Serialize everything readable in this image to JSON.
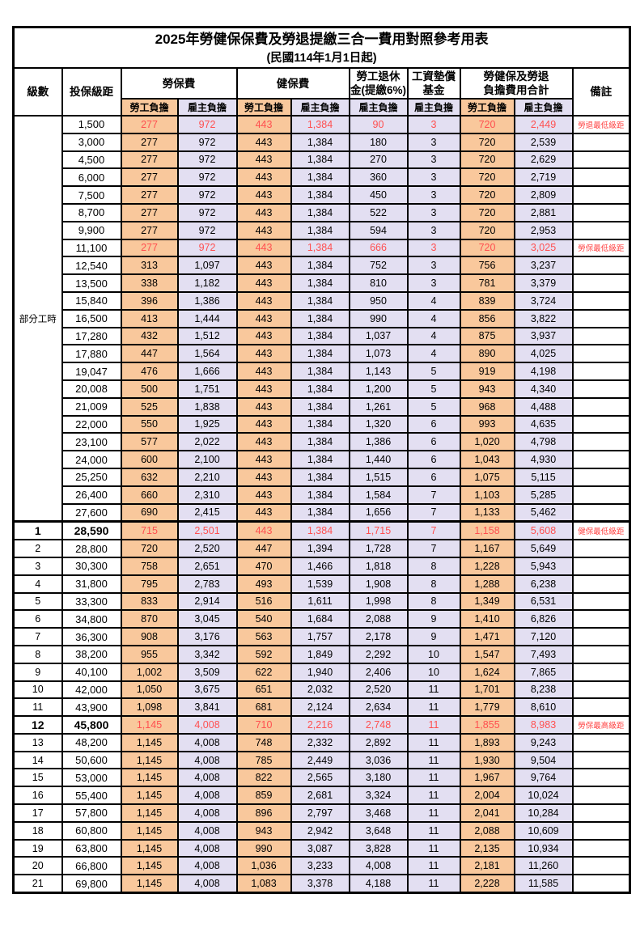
{
  "title": "2025年勞健保保費及勞退提繳三合一費用對照參考用表",
  "subtitle": "(民國114年1月1日起)",
  "columns": {
    "level": "級數",
    "bracket": "投保級距",
    "labor_insurance": "勞保費",
    "health_insurance": "健保費",
    "labor_pension": "勞工退休\n金(提繳6%)",
    "wage_arrears_fund": "工資墊償\n基金",
    "total": "勞健保及勞退\n負擔費用合計",
    "remark": "備註",
    "employee_share": "勞工負擔",
    "employer_share": "雇主負擔"
  },
  "part_time_label": "部分工時",
  "colors": {
    "employee_bg": "#F9C89C",
    "employer_bg": "#E3DFF2",
    "highlight_text": "#FF5050",
    "remark_text": "#FF4040",
    "border": "#000000"
  },
  "rows": [
    {
      "level": "",
      "bracket": "1,500",
      "values": [
        "277",
        "972",
        "443",
        "1,384",
        "90",
        "3",
        "720",
        "2,449"
      ],
      "remark": "勞退最低級距",
      "highlight": true,
      "bold": false
    },
    {
      "level": "",
      "bracket": "3,000",
      "values": [
        "277",
        "972",
        "443",
        "1,384",
        "180",
        "3",
        "720",
        "2,539"
      ],
      "remark": "",
      "highlight": false,
      "bold": false
    },
    {
      "level": "",
      "bracket": "4,500",
      "values": [
        "277",
        "972",
        "443",
        "1,384",
        "270",
        "3",
        "720",
        "2,629"
      ],
      "remark": "",
      "highlight": false,
      "bold": false
    },
    {
      "level": "",
      "bracket": "6,000",
      "values": [
        "277",
        "972",
        "443",
        "1,384",
        "360",
        "3",
        "720",
        "2,719"
      ],
      "remark": "",
      "highlight": false,
      "bold": false
    },
    {
      "level": "",
      "bracket": "7,500",
      "values": [
        "277",
        "972",
        "443",
        "1,384",
        "450",
        "3",
        "720",
        "2,809"
      ],
      "remark": "",
      "highlight": false,
      "bold": false
    },
    {
      "level": "",
      "bracket": "8,700",
      "values": [
        "277",
        "972",
        "443",
        "1,384",
        "522",
        "3",
        "720",
        "2,881"
      ],
      "remark": "",
      "highlight": false,
      "bold": false
    },
    {
      "level": "",
      "bracket": "9,900",
      "values": [
        "277",
        "972",
        "443",
        "1,384",
        "594",
        "3",
        "720",
        "2,953"
      ],
      "remark": "",
      "highlight": false,
      "bold": false
    },
    {
      "level": "",
      "bracket": "11,100",
      "values": [
        "277",
        "972",
        "443",
        "1,384",
        "666",
        "3",
        "720",
        "3,025"
      ],
      "remark": "勞保最低級距",
      "highlight": true,
      "bold": false
    },
    {
      "level": "",
      "bracket": "12,540",
      "values": [
        "313",
        "1,097",
        "443",
        "1,384",
        "752",
        "3",
        "756",
        "3,237"
      ],
      "remark": "",
      "highlight": false,
      "bold": false
    },
    {
      "level": "",
      "bracket": "13,500",
      "values": [
        "338",
        "1,182",
        "443",
        "1,384",
        "810",
        "3",
        "781",
        "3,379"
      ],
      "remark": "",
      "highlight": false,
      "bold": false
    },
    {
      "level": "",
      "bracket": "15,840",
      "values": [
        "396",
        "1,386",
        "443",
        "1,384",
        "950",
        "4",
        "839",
        "3,724"
      ],
      "remark": "",
      "highlight": false,
      "bold": false
    },
    {
      "level": "",
      "bracket": "16,500",
      "values": [
        "413",
        "1,444",
        "443",
        "1,384",
        "990",
        "4",
        "856",
        "3,822"
      ],
      "remark": "",
      "highlight": false,
      "bold": false
    },
    {
      "level": "",
      "bracket": "17,280",
      "values": [
        "432",
        "1,512",
        "443",
        "1,384",
        "1,037",
        "4",
        "875",
        "3,937"
      ],
      "remark": "",
      "highlight": false,
      "bold": false
    },
    {
      "level": "",
      "bracket": "17,880",
      "values": [
        "447",
        "1,564",
        "443",
        "1,384",
        "1,073",
        "4",
        "890",
        "4,025"
      ],
      "remark": "",
      "highlight": false,
      "bold": false
    },
    {
      "level": "",
      "bracket": "19,047",
      "values": [
        "476",
        "1,666",
        "443",
        "1,384",
        "1,143",
        "5",
        "919",
        "4,198"
      ],
      "remark": "",
      "highlight": false,
      "bold": false
    },
    {
      "level": "",
      "bracket": "20,008",
      "values": [
        "500",
        "1,751",
        "443",
        "1,384",
        "1,200",
        "5",
        "943",
        "4,340"
      ],
      "remark": "",
      "highlight": false,
      "bold": false
    },
    {
      "level": "",
      "bracket": "21,009",
      "values": [
        "525",
        "1,838",
        "443",
        "1,384",
        "1,261",
        "5",
        "968",
        "4,488"
      ],
      "remark": "",
      "highlight": false,
      "bold": false
    },
    {
      "level": "",
      "bracket": "22,000",
      "values": [
        "550",
        "1,925",
        "443",
        "1,384",
        "1,320",
        "6",
        "993",
        "4,635"
      ],
      "remark": "",
      "highlight": false,
      "bold": false
    },
    {
      "level": "",
      "bracket": "23,100",
      "values": [
        "577",
        "2,022",
        "443",
        "1,384",
        "1,386",
        "6",
        "1,020",
        "4,798"
      ],
      "remark": "",
      "highlight": false,
      "bold": false
    },
    {
      "level": "",
      "bracket": "24,000",
      "values": [
        "600",
        "2,100",
        "443",
        "1,384",
        "1,440",
        "6",
        "1,043",
        "4,930"
      ],
      "remark": "",
      "highlight": false,
      "bold": false
    },
    {
      "level": "",
      "bracket": "25,250",
      "values": [
        "632",
        "2,210",
        "443",
        "1,384",
        "1,515",
        "6",
        "1,075",
        "5,115"
      ],
      "remark": "",
      "highlight": false,
      "bold": false
    },
    {
      "level": "",
      "bracket": "26,400",
      "values": [
        "660",
        "2,310",
        "443",
        "1,384",
        "1,584",
        "7",
        "1,103",
        "5,285"
      ],
      "remark": "",
      "highlight": false,
      "bold": false
    },
    {
      "level": "",
      "bracket": "27,600",
      "values": [
        "690",
        "2,415",
        "443",
        "1,384",
        "1,656",
        "7",
        "1,133",
        "5,462"
      ],
      "remark": "",
      "highlight": false,
      "bold": false
    },
    {
      "level": "1",
      "bracket": "28,590",
      "values": [
        "715",
        "2,501",
        "443",
        "1,384",
        "1,715",
        "7",
        "1,158",
        "5,608"
      ],
      "remark": "健保最低級距",
      "highlight": true,
      "bold": true,
      "section": true
    },
    {
      "level": "2",
      "bracket": "28,800",
      "values": [
        "720",
        "2,520",
        "447",
        "1,394",
        "1,728",
        "7",
        "1,167",
        "5,649"
      ],
      "remark": "",
      "highlight": false,
      "bold": false
    },
    {
      "level": "3",
      "bracket": "30,300",
      "values": [
        "758",
        "2,651",
        "470",
        "1,466",
        "1,818",
        "8",
        "1,228",
        "5,943"
      ],
      "remark": "",
      "highlight": false,
      "bold": false
    },
    {
      "level": "4",
      "bracket": "31,800",
      "values": [
        "795",
        "2,783",
        "493",
        "1,539",
        "1,908",
        "8",
        "1,288",
        "6,238"
      ],
      "remark": "",
      "highlight": false,
      "bold": false
    },
    {
      "level": "5",
      "bracket": "33,300",
      "values": [
        "833",
        "2,914",
        "516",
        "1,611",
        "1,998",
        "8",
        "1,349",
        "6,531"
      ],
      "remark": "",
      "highlight": false,
      "bold": false
    },
    {
      "level": "6",
      "bracket": "34,800",
      "values": [
        "870",
        "3,045",
        "540",
        "1,684",
        "2,088",
        "9",
        "1,410",
        "6,826"
      ],
      "remark": "",
      "highlight": false,
      "bold": false
    },
    {
      "level": "7",
      "bracket": "36,300",
      "values": [
        "908",
        "3,176",
        "563",
        "1,757",
        "2,178",
        "9",
        "1,471",
        "7,120"
      ],
      "remark": "",
      "highlight": false,
      "bold": false
    },
    {
      "level": "8",
      "bracket": "38,200",
      "values": [
        "955",
        "3,342",
        "592",
        "1,849",
        "2,292",
        "10",
        "1,547",
        "7,493"
      ],
      "remark": "",
      "highlight": false,
      "bold": false
    },
    {
      "level": "9",
      "bracket": "40,100",
      "values": [
        "1,002",
        "3,509",
        "622",
        "1,940",
        "2,406",
        "10",
        "1,624",
        "7,865"
      ],
      "remark": "",
      "highlight": false,
      "bold": false
    },
    {
      "level": "10",
      "bracket": "42,000",
      "values": [
        "1,050",
        "3,675",
        "651",
        "2,032",
        "2,520",
        "11",
        "1,701",
        "8,238"
      ],
      "remark": "",
      "highlight": false,
      "bold": false
    },
    {
      "level": "11",
      "bracket": "43,900",
      "values": [
        "1,098",
        "3,841",
        "681",
        "2,124",
        "2,634",
        "11",
        "1,779",
        "8,610"
      ],
      "remark": "",
      "highlight": false,
      "bold": false
    },
    {
      "level": "12",
      "bracket": "45,800",
      "values": [
        "1,145",
        "4,008",
        "710",
        "2,216",
        "2,748",
        "11",
        "1,855",
        "8,983"
      ],
      "remark": "勞保最高級距",
      "highlight": true,
      "bold": true
    },
    {
      "level": "13",
      "bracket": "48,200",
      "values": [
        "1,145",
        "4,008",
        "748",
        "2,332",
        "2,892",
        "11",
        "1,893",
        "9,243"
      ],
      "remark": "",
      "highlight": false,
      "bold": false
    },
    {
      "level": "14",
      "bracket": "50,600",
      "values": [
        "1,145",
        "4,008",
        "785",
        "2,449",
        "3,036",
        "11",
        "1,930",
        "9,504"
      ],
      "remark": "",
      "highlight": false,
      "bold": false
    },
    {
      "level": "15",
      "bracket": "53,000",
      "values": [
        "1,145",
        "4,008",
        "822",
        "2,565",
        "3,180",
        "11",
        "1,967",
        "9,764"
      ],
      "remark": "",
      "highlight": false,
      "bold": false
    },
    {
      "level": "16",
      "bracket": "55,400",
      "values": [
        "1,145",
        "4,008",
        "859",
        "2,681",
        "3,324",
        "11",
        "2,004",
        "10,024"
      ],
      "remark": "",
      "highlight": false,
      "bold": false
    },
    {
      "level": "17",
      "bracket": "57,800",
      "values": [
        "1,145",
        "4,008",
        "896",
        "2,797",
        "3,468",
        "11",
        "2,041",
        "10,284"
      ],
      "remark": "",
      "highlight": false,
      "bold": false
    },
    {
      "level": "18",
      "bracket": "60,800",
      "values": [
        "1,145",
        "4,008",
        "943",
        "2,942",
        "3,648",
        "11",
        "2,088",
        "10,609"
      ],
      "remark": "",
      "highlight": false,
      "bold": false
    },
    {
      "level": "19",
      "bracket": "63,800",
      "values": [
        "1,145",
        "4,008",
        "990",
        "3,087",
        "3,828",
        "11",
        "2,135",
        "10,934"
      ],
      "remark": "",
      "highlight": false,
      "bold": false
    },
    {
      "level": "20",
      "bracket": "66,800",
      "values": [
        "1,145",
        "4,008",
        "1,036",
        "3,233",
        "4,008",
        "11",
        "2,181",
        "11,260"
      ],
      "remark": "",
      "highlight": false,
      "bold": false
    },
    {
      "level": "21",
      "bracket": "69,800",
      "values": [
        "1,145",
        "4,008",
        "1,083",
        "3,378",
        "4,188",
        "11",
        "2,228",
        "11,585"
      ],
      "remark": "",
      "highlight": false,
      "bold": false
    }
  ]
}
